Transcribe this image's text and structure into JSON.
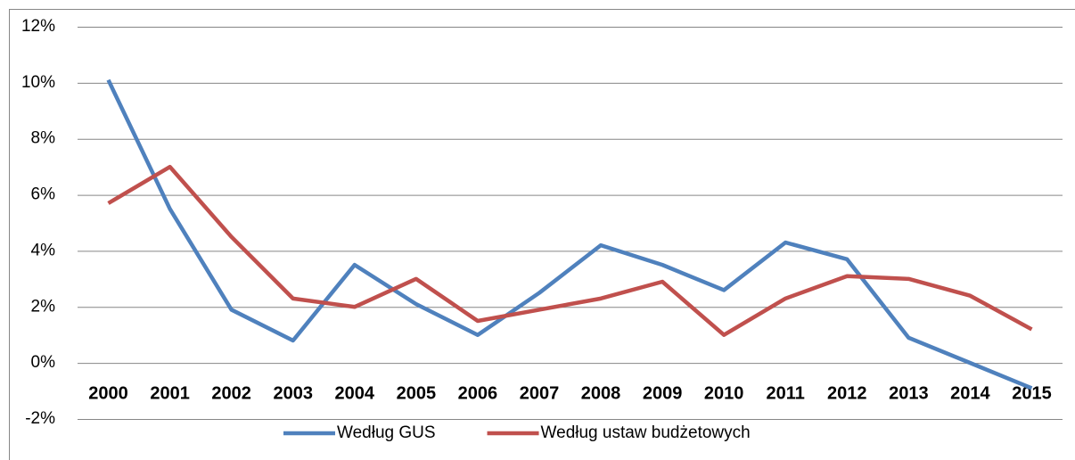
{
  "chart_data": {
    "type": "line",
    "categories": [
      "2000",
      "2001",
      "2002",
      "2003",
      "2004",
      "2005",
      "2006",
      "2007",
      "2008",
      "2009",
      "2010",
      "2011",
      "2012",
      "2013",
      "2014",
      "2015"
    ],
    "series": [
      {
        "name": "Według GUS",
        "color": "#4f81bd",
        "values": [
          10.1,
          5.5,
          1.9,
          0.8,
          3.5,
          2.1,
          1.0,
          2.5,
          4.2,
          3.5,
          2.6,
          4.3,
          3.7,
          0.9,
          0.0,
          -0.9
        ]
      },
      {
        "name": "Według ustaw budżetowych",
        "color": "#c0504d",
        "values": [
          5.7,
          7.0,
          4.5,
          2.3,
          2.0,
          3.0,
          1.5,
          1.9,
          2.3,
          2.9,
          1.0,
          2.3,
          3.1,
          3.0,
          2.4,
          1.2
        ]
      }
    ],
    "ylim": [
      -2,
      12
    ],
    "yticks": [
      {
        "value": -2,
        "label": "-2%"
      },
      {
        "value": 0,
        "label": "0%"
      },
      {
        "value": 2,
        "label": "2%"
      },
      {
        "value": 4,
        "label": "4%"
      },
      {
        "value": 6,
        "label": "6%"
      },
      {
        "value": 8,
        "label": "8%"
      },
      {
        "value": 10,
        "label": "10%"
      },
      {
        "value": 12,
        "label": "12%"
      }
    ],
    "grid": true,
    "legend": "bottom"
  }
}
